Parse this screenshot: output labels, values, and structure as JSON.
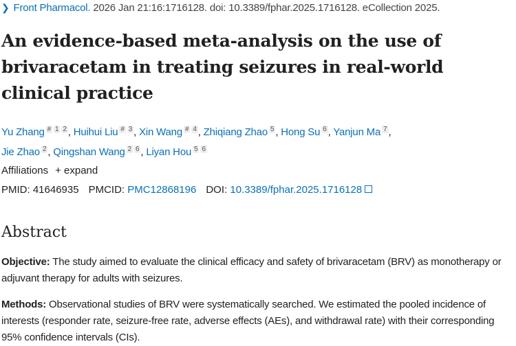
{
  "citation": {
    "journal": "Front Pharmacol.",
    "details": " 2026 Jan 21:16:1716128. doi: 10.3389/fphar.2025.1716128. eCollection 2025."
  },
  "title": "An evidence-based meta-analysis on the use of brivaracetam in treating seizures in real-world clinical practice",
  "authors": [
    {
      "name": "Yu Zhang",
      "sups": [
        "#",
        "1",
        "2"
      ]
    },
    {
      "name": "Huihui Liu",
      "sups": [
        "#",
        "3"
      ]
    },
    {
      "name": "Xin Wang",
      "sups": [
        "#",
        "4"
      ]
    },
    {
      "name": "Zhiqiang Zhao",
      "sups": [
        "5"
      ]
    },
    {
      "name": "Hong Su",
      "sups": [
        "6"
      ]
    },
    {
      "name": "Yanjun Ma",
      "sups": [
        "7"
      ]
    },
    {
      "name": "Jie Zhao",
      "sups": [
        "2"
      ]
    },
    {
      "name": "Qingshan Wang",
      "sups": [
        "2",
        "6"
      ]
    },
    {
      "name": "Liyan Hou",
      "sups": [
        "5",
        "6"
      ]
    }
  ],
  "affiliations": {
    "label": "Affiliations",
    "expand": "+ expand"
  },
  "ids": {
    "pmid_label": "PMID:",
    "pmid": "41646935",
    "pmcid_label": "PMCID:",
    "pmcid": "PMC12868196",
    "doi_label": "DOI:",
    "doi": "10.3389/fphar.2025.1716128"
  },
  "abstract": {
    "heading": "Abstract",
    "objective_label": "Objective:",
    "objective": " The study aimed to evaluate the clinical efficacy and safety of brivaracetam (BRV) as monotherapy or adjuvant therapy for adults with seizures.",
    "methods_label": "Methods:",
    "methods": " Observational studies of BRV were systematically searched. We estimated the pooled incidence of interests (responder rate, seizure-free rate, adverse effects (AEs), and withdrawal rate) with their corresponding 95% confidence intervals (CIs)."
  },
  "colors": {
    "link": "#0b6fb4",
    "text": "#212121"
  }
}
